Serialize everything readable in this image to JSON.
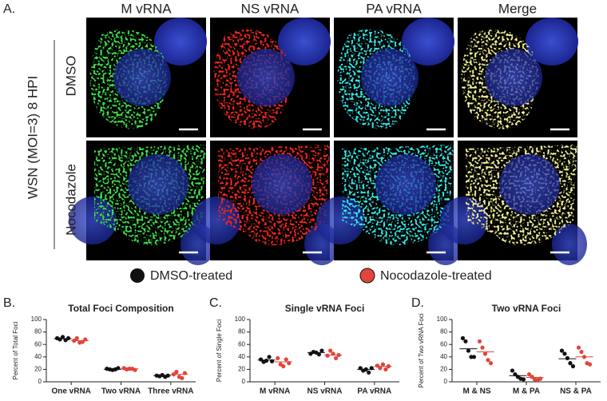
{
  "figure": {
    "panel_labels": [
      "A.",
      "B.",
      "C.",
      "D."
    ],
    "columns": [
      "M vRNA",
      "NS vRNA",
      "PA vRNA",
      "Merge"
    ],
    "rows": [
      "DMSO",
      "Nocodazole"
    ],
    "condition": "WSN (MOI=3) 8 HPI"
  },
  "chart_data": [
    {
      "type": "dot",
      "title": "Total Foci Composition",
      "y_label": "Percent of Total Foci",
      "categories": [
        "One vRNA",
        "Two vRNA",
        "Three vRNA"
      ],
      "ylim": [
        0,
        100
      ],
      "yticks": [
        0,
        20,
        40,
        60,
        80,
        100
      ],
      "series": [
        {
          "name": "DMSO-treated",
          "color": "#111111",
          "values": [
            [
              70,
              68,
              72,
              67,
              70
            ],
            [
              21,
              20,
              19,
              20,
              22
            ],
            [
              10,
              9,
              11,
              8,
              10
            ]
          ],
          "means": [
            69,
            20,
            10
          ]
        },
        {
          "name": "Nocodazole-treated",
          "color": "#e2453a",
          "values": [
            [
              66,
              70,
              63,
              64,
              68
            ],
            [
              22,
              20,
              21,
              21,
              19
            ],
            [
              12,
              16,
              8,
              6,
              14
            ]
          ],
          "means": [
            66,
            21,
            12
          ]
        }
      ]
    },
    {
      "type": "dot",
      "title": "Single vRNA Foci",
      "y_label": "Percent of Single Foci",
      "categories": [
        "M vRNA",
        "NS vRNA",
        "PA vRNA"
      ],
      "ylim": [
        0,
        100
      ],
      "yticks": [
        0,
        20,
        40,
        60,
        80,
        100
      ],
      "series": [
        {
          "color": "#111111",
          "values": [
            [
              36,
              32,
              34,
              40,
              33
            ],
            [
              45,
              48,
              47,
              44,
              50
            ],
            [
              22,
              18,
              20,
              15,
              22
            ]
          ],
          "means": [
            35,
            47,
            20
          ]
        },
        {
          "color": "#e2453a",
          "values": [
            [
              38,
              28,
              25,
              36,
              30
            ],
            [
              42,
              50,
              45,
              38,
              43
            ],
            [
              26,
              22,
              28,
              20,
              25
            ]
          ],
          "means": [
            32,
            43,
            25
          ]
        }
      ]
    },
    {
      "type": "dot",
      "title": "Two vRNA Foci",
      "y_label": "Percent of Two vRNA Foci",
      "categories": [
        "M & NS",
        "M & PA",
        "NS & PA"
      ],
      "ylim": [
        0,
        100
      ],
      "yticks": [
        0,
        20,
        40,
        60,
        80,
        100
      ],
      "series": [
        {
          "color": "#111111",
          "values": [
            [
              70,
              65,
              50,
              40,
              40
            ],
            [
              18,
              12,
              8,
              5,
              4
            ],
            [
              50,
              45,
              38,
              30,
              25
            ]
          ],
          "means": [
            53,
            10,
            37
          ]
        },
        {
          "color": "#e2453a",
          "values": [
            [
              65,
              55,
              45,
              35,
              30
            ],
            [
              12,
              8,
              4,
              3,
              5
            ],
            [
              55,
              48,
              40,
              30,
              28
            ]
          ],
          "means": [
            48,
            7,
            40
          ]
        }
      ]
    }
  ]
}
